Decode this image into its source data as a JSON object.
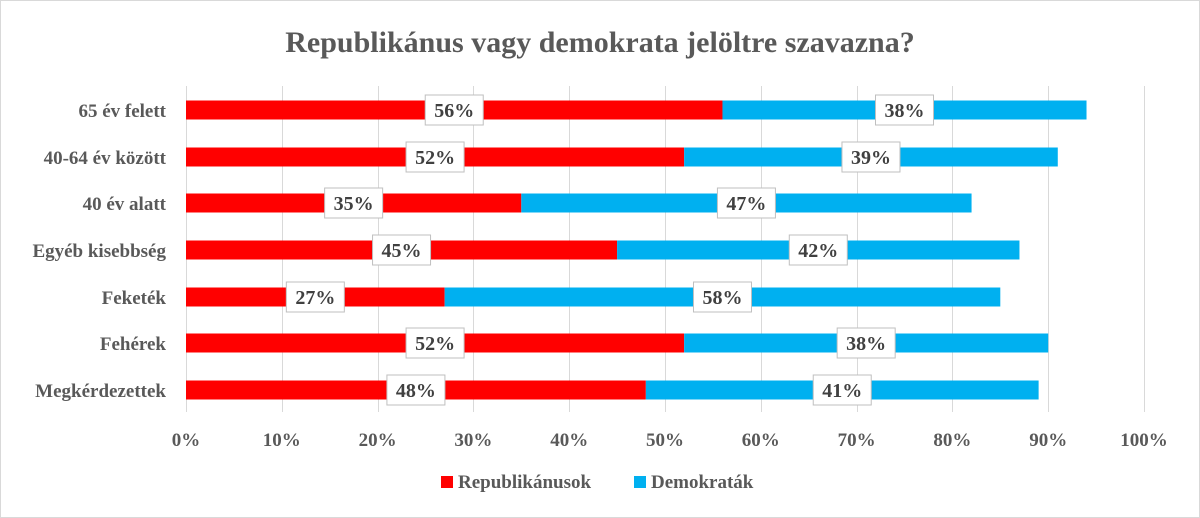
{
  "chart_data": {
    "type": "bar",
    "orientation": "horizontal",
    "stacked": true,
    "title": "Republikánus vagy demokrata jelöltre szavazna?",
    "categories": [
      "65 év felett",
      "40-64 év között",
      "40 év alatt",
      "Egyéb kisebbség",
      "Feketék",
      "Fehérek",
      "Megkérdezettek"
    ],
    "series": [
      {
        "name": "Republikánusok",
        "color": "#ff0000",
        "values": [
          56,
          52,
          35,
          45,
          27,
          52,
          48
        ],
        "labels": [
          "56%",
          "52%",
          "35%",
          "45%",
          "27%",
          "52%",
          "48%"
        ]
      },
      {
        "name": "Demokraták",
        "color": "#00b0f0",
        "values": [
          38,
          39,
          47,
          42,
          58,
          38,
          41
        ],
        "labels": [
          "38%",
          "39%",
          "47%",
          "42%",
          "58%",
          "38%",
          "41%"
        ]
      }
    ],
    "xlim": [
      0,
      100
    ],
    "xticks": [
      0,
      10,
      20,
      30,
      40,
      50,
      60,
      70,
      80,
      90,
      100
    ],
    "xtick_labels": [
      "0%",
      "10%",
      "20%",
      "30%",
      "40%",
      "50%",
      "60%",
      "70%",
      "80%",
      "90%",
      "100%"
    ],
    "grid": "vertical",
    "legend_position": "bottom"
  }
}
